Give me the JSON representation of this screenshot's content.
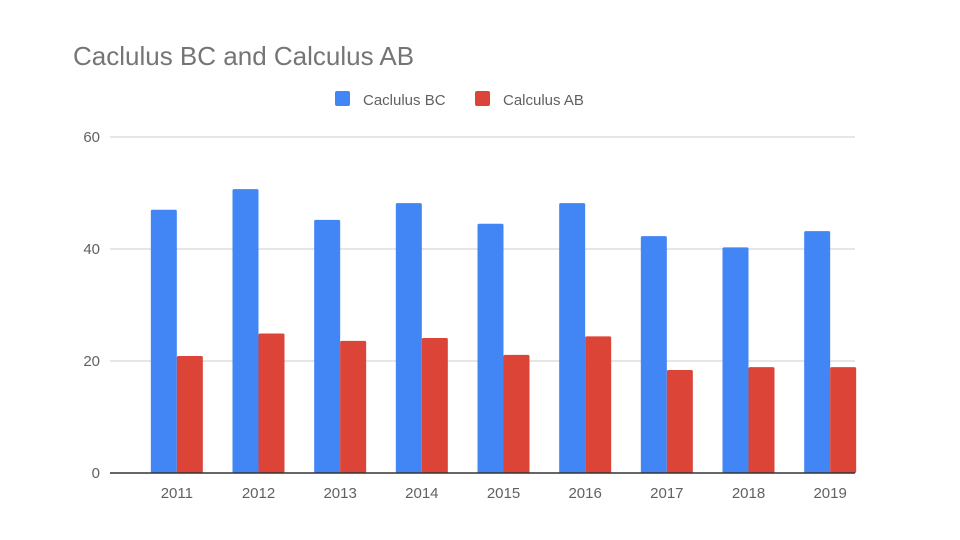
{
  "chart_data": {
    "type": "bar",
    "title": "Caclulus BC and Calculus AB",
    "xlabel": "",
    "ylabel": "",
    "categories": [
      "2011",
      "2012",
      "2013",
      "2014",
      "2015",
      "2016",
      "2017",
      "2018",
      "2019"
    ],
    "series": [
      {
        "name": "Caclulus BC",
        "color": "#4285f4",
        "values": [
          47,
          50.7,
          45.2,
          48.2,
          44.5,
          48.2,
          42.3,
          40.3,
          43.2
        ]
      },
      {
        "name": "Calculus AB",
        "color": "#db4437",
        "values": [
          20.9,
          24.9,
          23.6,
          24.1,
          21.1,
          24.4,
          18.4,
          18.9,
          18.9
        ]
      }
    ],
    "ylim": [
      0,
      60
    ],
    "yticks": [
      "0",
      "20",
      "40",
      "60"
    ],
    "grid": true,
    "legend_position": "top"
  }
}
